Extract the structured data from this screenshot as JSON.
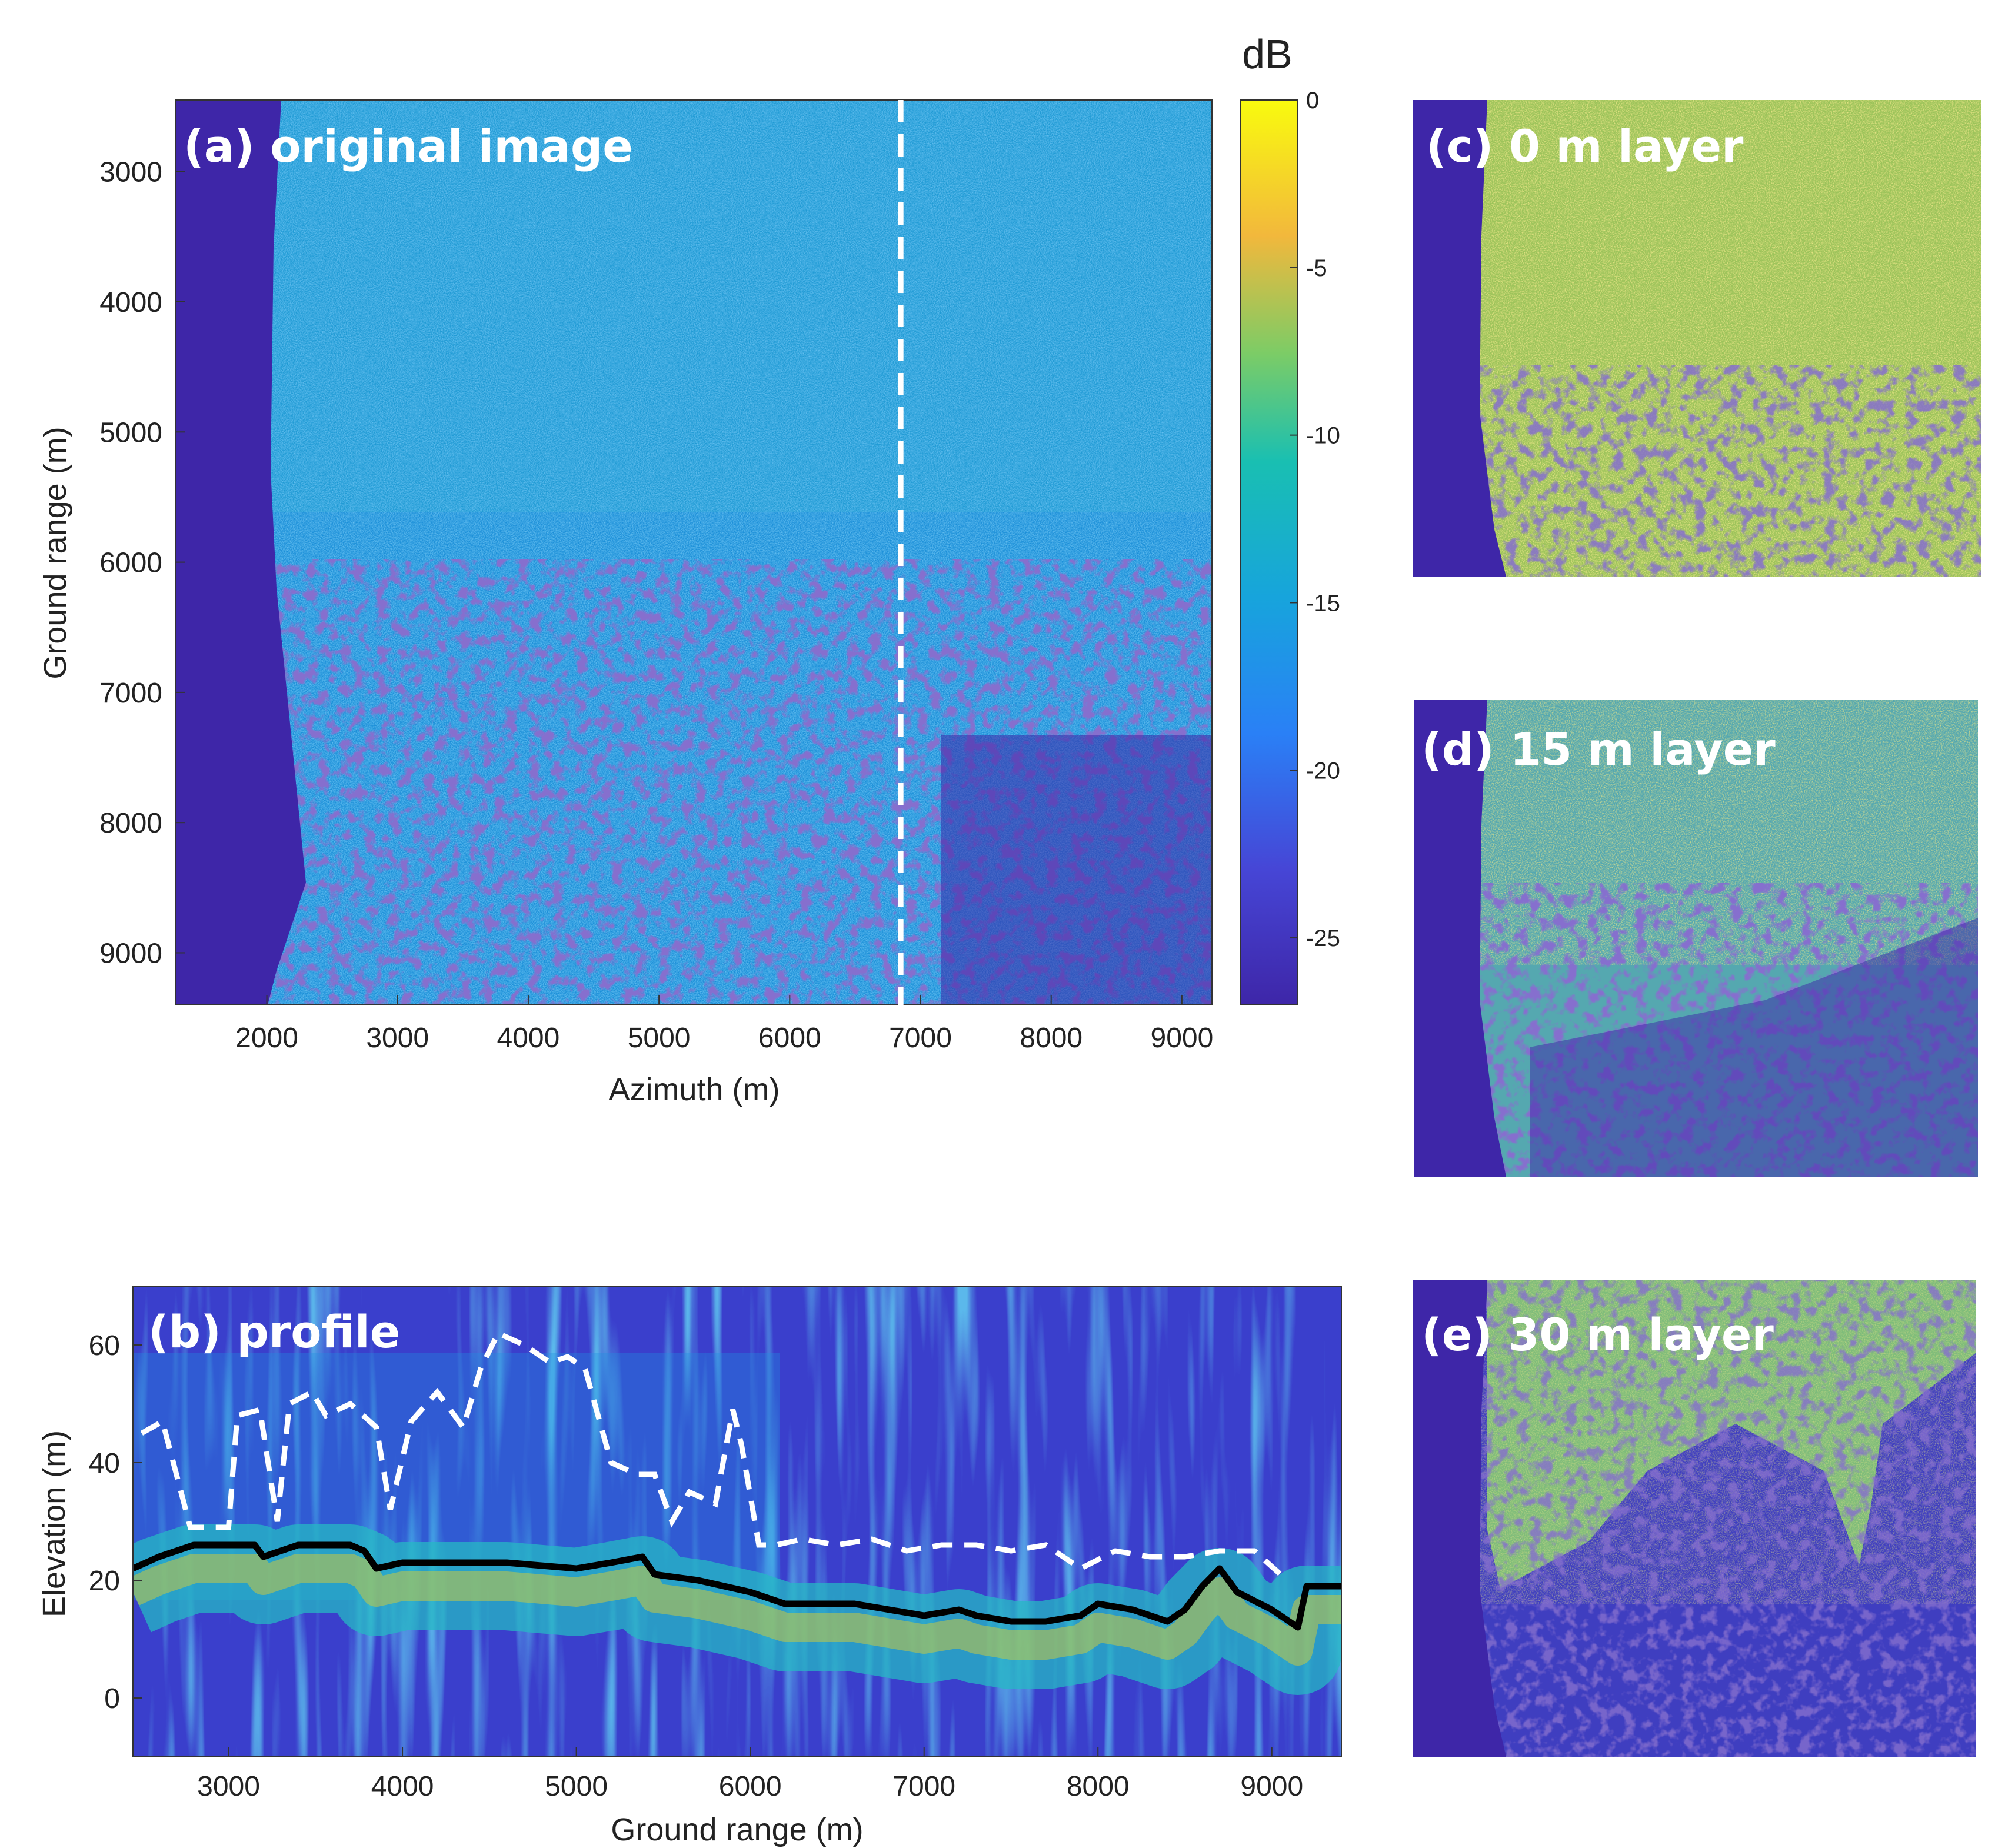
{
  "colors": {
    "map_low": "#3e26a8",
    "map_mid": "#1fa2e0",
    "map_high": "#f9fb0e",
    "profile_top_line": "#ffffff",
    "profile_ground_line": "#000000"
  },
  "chart_data": [
    {
      "type": "heatmap",
      "title": "(a) original image",
      "xlabel": "Azimuth (m)",
      "ylabel": "Ground range (m)",
      "xlim": [
        1300,
        9230
      ],
      "ylim": [
        2450,
        9400
      ],
      "y_reversed": true,
      "xticks": [
        "2000",
        "3000",
        "4000",
        "5000",
        "6000",
        "7000",
        "8000",
        "9000"
      ],
      "yticks": [
        "3000",
        "4000",
        "5000",
        "6000",
        "7000",
        "8000",
        "9000"
      ],
      "profile_line_azimuth": 6850,
      "colorbar": {
        "label": "dB",
        "range": [
          -27,
          0
        ],
        "ticks": [
          "0",
          "-5",
          "-10",
          "-15",
          "-20",
          "-25"
        ]
      }
    },
    {
      "type": "heatmap",
      "title": "(b) profile",
      "xlabel": "Ground range (m)",
      "ylabel": "Elevation (m)",
      "xlim": [
        2450,
        9400
      ],
      "ylim": [
        -10,
        70
      ],
      "xticks": [
        "3000",
        "4000",
        "5000",
        "6000",
        "7000",
        "8000",
        "9000"
      ],
      "yticks": [
        "0",
        "20",
        "40",
        "60"
      ],
      "series": [
        {
          "name": "canopy top (dashed white)",
          "x": [
            2500,
            2620,
            2700,
            2780,
            2900,
            3000,
            3050,
            3180,
            3280,
            3350,
            3480,
            3560,
            3700,
            3850,
            3930,
            4050,
            4200,
            4350,
            4450,
            4550,
            4700,
            4850,
            4950,
            5050,
            5200,
            5350,
            5450,
            5550,
            5650,
            5800,
            5900,
            5950,
            6050,
            6150,
            6300,
            6500,
            6700,
            6900,
            7100,
            7300,
            7500,
            7700,
            7900,
            8100,
            8300,
            8500,
            8700,
            8900,
            9050,
            9100
          ],
          "y": [
            45,
            47,
            38,
            29,
            29,
            29,
            48,
            49,
            30,
            50,
            52,
            48,
            50,
            46,
            32,
            47,
            52,
            46,
            56,
            62,
            60,
            57,
            58,
            56,
            40,
            38,
            38,
            30,
            35,
            33,
            49,
            43,
            26,
            26,
            27,
            26,
            27,
            25,
            26,
            26,
            25,
            26,
            22,
            25,
            24,
            24,
            25,
            25,
            21,
            21
          ]
        },
        {
          "name": "ground (solid black)",
          "x": [
            2450,
            2600,
            2800,
            3000,
            3150,
            3200,
            3400,
            3700,
            3780,
            3850,
            4000,
            4300,
            4600,
            5000,
            5200,
            5380,
            5450,
            5700,
            6000,
            6100,
            6200,
            6400,
            6600,
            6800,
            7000,
            7200,
            7300,
            7500,
            7700,
            7900,
            8000,
            8200,
            8400,
            8500,
            8600,
            8700,
            8800,
            9000,
            9150,
            9200,
            9400
          ],
          "y": [
            22,
            24,
            26,
            26,
            26,
            24,
            26,
            26,
            25,
            22,
            23,
            23,
            23,
            22,
            23,
            24,
            21,
            20,
            18,
            17,
            16,
            16,
            16,
            15,
            14,
            15,
            14,
            13,
            13,
            14,
            16,
            15,
            13,
            15,
            19,
            22,
            18,
            15,
            12,
            19,
            19
          ]
        }
      ]
    },
    {
      "type": "heatmap",
      "title": "(c) 0 m layer"
    },
    {
      "type": "heatmap",
      "title": "(d) 15 m layer"
    },
    {
      "type": "heatmap",
      "title": "(e) 30 m layer"
    }
  ]
}
